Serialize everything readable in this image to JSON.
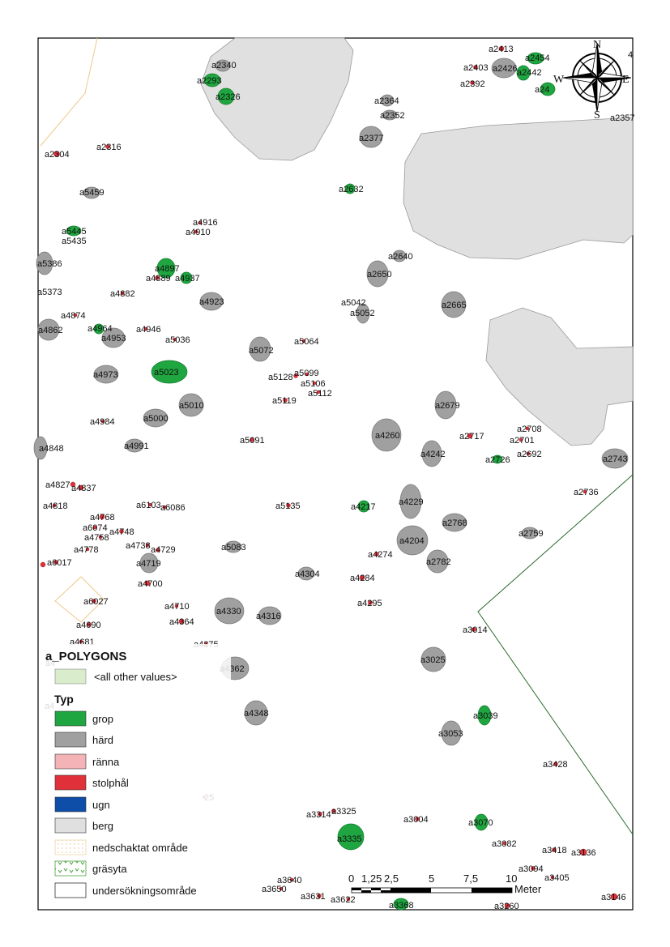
{
  "colors": {
    "grop": "#1fa640",
    "hard": "#a0a0a0",
    "ranna": "#f4b3b6",
    "stolphal": "#e0313a",
    "ugn": "#0f4ea8",
    "berg": "#e0e0e0",
    "nedschaktat": "#f2d8a8",
    "boundary": "#2e6b2e"
  },
  "map_labels": [
    "a2413",
    "a2454",
    "a2403",
    "a2426",
    "a2442",
    "a2340",
    "a2293",
    "a2392",
    "a24",
    "a2326",
    "a2364",
    "a2352",
    "a2377",
    "a2304",
    "a2316",
    "a2632",
    "a5459",
    "a4916",
    "a4910",
    "a5445",
    "a5435",
    "a2640",
    "a5386",
    "a4897",
    "a4889",
    "a4937",
    "a2650",
    "a5373",
    "a4882",
    "a4923",
    "a5042",
    "a5052",
    "a2665",
    "a4874",
    "a4862",
    "a4964",
    "a4953",
    "a4946",
    "a5036",
    "a5064",
    "a5072",
    "a4973",
    "a5023",
    "a5128",
    "a5099",
    "a5106",
    "a5112",
    "a5119",
    "a5010",
    "a2679",
    "a4984",
    "a5000",
    "a2717",
    "a2708",
    "a2701",
    "a2692",
    "a4260",
    "a4848",
    "a4991",
    "a5091",
    "a4242",
    "a2726",
    "a2743",
    "a4827",
    "a4837",
    "a2736",
    "a4818",
    "a4768",
    "a6103",
    "a6086",
    "a5135",
    "a4217",
    "a4229",
    "a2768",
    "a6074",
    "a4748",
    "a4758",
    "a4738",
    "a4729",
    "a4778",
    "a5083",
    "a4204",
    "a2759",
    "a4274",
    "a6017",
    "a4719",
    "a2782",
    "a4304",
    "a4700",
    "a4284",
    "a6027",
    "a4710",
    "a4330",
    "a4316",
    "a4295",
    "a4364",
    "a4690",
    "a3014",
    "a4681",
    "a4375",
    "a3025",
    "a4362",
    "a4348",
    "a3039",
    "a3053",
    "a3428",
    "a3314",
    "a3325",
    "a3004",
    "a3070",
    "a3335",
    "a3082",
    "a3418",
    "a3136",
    "a3094",
    "a3405",
    "a3640",
    "a3650",
    "a3631",
    "a3622",
    "a3368",
    "a3260",
    "a3146"
  ],
  "partial_labels": [
    "4",
    "25",
    "a4",
    "a4"
  ],
  "legend": {
    "title": "a_POLYGONS",
    "other": "<all other values>",
    "field": "Typ",
    "items": [
      "grop",
      "härd",
      "ränna",
      "stolphål",
      "ugn",
      "berg",
      "nedschaktat område",
      "gräsyta",
      "undersökningsområde"
    ]
  },
  "scalebar": {
    "ticks": [
      "0",
      "1,25",
      "2,5",
      "5",
      "7,5",
      "10"
    ],
    "unit": "Meter"
  },
  "compass": {
    "n": "N",
    "e": "E",
    "s": "S",
    "w": "W",
    "icon": "compass-rose-icon"
  }
}
